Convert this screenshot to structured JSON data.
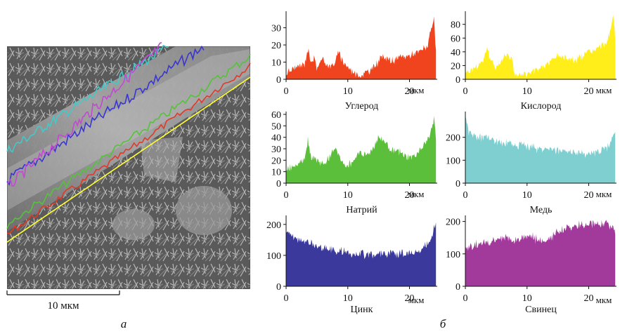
{
  "panels": {
    "left_letter": "а",
    "right_letter": "б"
  },
  "sem": {
    "scale_bar_label": "10 мкм",
    "line_colors": [
      "#ffff33",
      "#e03a2a",
      "#55c23a",
      "#44c8c8",
      "#3b36d0",
      "#c24ad2"
    ]
  },
  "chart_data": [
    {
      "type": "area",
      "element": "Углерод",
      "color": "#f0441e",
      "x_unit": "мкм",
      "xlim": [
        0,
        24.5
      ],
      "ylim": [
        0,
        38
      ],
      "x_ticks": [
        0,
        10,
        20
      ],
      "y_ticks": [
        0,
        10,
        20,
        30
      ],
      "x": [
        0,
        1,
        2,
        3,
        3.5,
        4,
        4.5,
        5,
        6,
        7,
        8,
        8.5,
        9,
        10,
        11,
        12,
        13,
        14,
        15,
        16,
        17,
        18,
        19,
        20,
        21,
        22,
        23,
        23.5,
        24,
        24.3
      ],
      "values": [
        3,
        6,
        7,
        9,
        18,
        11,
        12,
        7,
        12,
        7,
        10,
        16,
        12,
        7,
        4,
        2,
        4,
        6,
        11,
        14,
        10,
        12,
        13,
        14,
        15,
        17,
        20,
        28,
        36,
        14
      ]
    },
    {
      "type": "area",
      "element": "Кислород",
      "color": "#ffee1a",
      "x_unit": "мкм",
      "xlim": [
        0,
        24.5
      ],
      "ylim": [
        0,
        95
      ],
      "x_ticks": [
        0,
        10,
        20
      ],
      "y_ticks": [
        0,
        20,
        40,
        60,
        80
      ],
      "x": [
        0,
        1,
        2,
        3,
        3.5,
        4,
        5,
        6,
        6.5,
        7,
        7.5,
        8,
        9,
        10,
        11,
        12,
        13,
        14,
        15,
        16,
        17,
        18,
        19,
        20,
        21,
        22,
        23,
        24,
        24.3
      ],
      "values": [
        10,
        14,
        20,
        30,
        48,
        28,
        18,
        28,
        38,
        36,
        30,
        8,
        6,
        8,
        10,
        16,
        20,
        28,
        35,
        32,
        30,
        28,
        35,
        40,
        42,
        48,
        55,
        90,
        60
      ]
    },
    {
      "type": "area",
      "element": "Натрий",
      "color": "#5cbf3c",
      "x_unit": "мкм",
      "xlim": [
        0,
        24.5
      ],
      "ylim": [
        0,
        60
      ],
      "x_ticks": [
        0,
        10,
        20
      ],
      "y_ticks": [
        0,
        10,
        20,
        30,
        40,
        50,
        60
      ],
      "x": [
        0,
        1,
        2,
        3,
        3.5,
        4,
        5,
        6,
        7,
        8,
        9,
        10,
        11,
        12,
        13,
        14,
        15,
        16,
        17,
        18,
        19,
        20,
        21,
        22,
        23,
        24,
        24.3
      ],
      "values": [
        12,
        15,
        18,
        22,
        38,
        25,
        20,
        16,
        22,
        32,
        18,
        15,
        20,
        28,
        24,
        30,
        40,
        36,
        30,
        28,
        24,
        22,
        25,
        30,
        38,
        55,
        40
      ]
    },
    {
      "type": "area",
      "element": "Медь",
      "color": "#7fcfd0",
      "x_unit": "мкм",
      "xlim": [
        0,
        24.5
      ],
      "ylim": [
        0,
        300
      ],
      "x_ticks": [
        0,
        10,
        20
      ],
      "y_ticks": [
        0,
        100,
        200
      ],
      "x": [
        0,
        0.5,
        1,
        2,
        3,
        4,
        5,
        6,
        8,
        10,
        12,
        14,
        16,
        18,
        19,
        20,
        21,
        22,
        23,
        24,
        24.3
      ],
      "values": [
        290,
        230,
        210,
        200,
        200,
        190,
        185,
        180,
        170,
        160,
        150,
        145,
        140,
        130,
        130,
        130,
        135,
        140,
        160,
        200,
        230
      ]
    },
    {
      "type": "area",
      "element": "Цинк",
      "color": "#3b3a9c",
      "x_unit": "мкм",
      "xlim": [
        0,
        24.5
      ],
      "ylim": [
        0,
        220
      ],
      "x_ticks": [
        0,
        10,
        20
      ],
      "y_ticks": [
        0,
        100,
        200
      ],
      "x": [
        0,
        1,
        2,
        3,
        4,
        5,
        6,
        8,
        10,
        12,
        14,
        16,
        18,
        20,
        21,
        22,
        23,
        23.5,
        24,
        24.3
      ],
      "values": [
        180,
        160,
        150,
        145,
        140,
        130,
        125,
        115,
        110,
        105,
        105,
        105,
        105,
        105,
        110,
        120,
        140,
        160,
        190,
        210
      ]
    },
    {
      "type": "area",
      "element": "Свинец",
      "color": "#a23a9c",
      "x_unit": "мкм",
      "xlim": [
        0,
        24.5
      ],
      "ylim": [
        0,
        210
      ],
      "x_ticks": [
        0,
        10,
        20
      ],
      "y_ticks": [
        0,
        100,
        200
      ],
      "x": [
        0,
        1,
        2,
        3,
        4,
        5,
        6,
        7,
        8,
        9,
        10,
        11,
        12,
        13,
        14,
        15,
        16,
        17,
        18,
        19,
        20,
        21,
        22,
        23,
        24,
        24.3
      ],
      "values": [
        110,
        125,
        130,
        140,
        135,
        145,
        150,
        145,
        140,
        150,
        155,
        150,
        140,
        135,
        150,
        165,
        175,
        180,
        185,
        190,
        195,
        195,
        190,
        195,
        180,
        160
      ]
    }
  ]
}
